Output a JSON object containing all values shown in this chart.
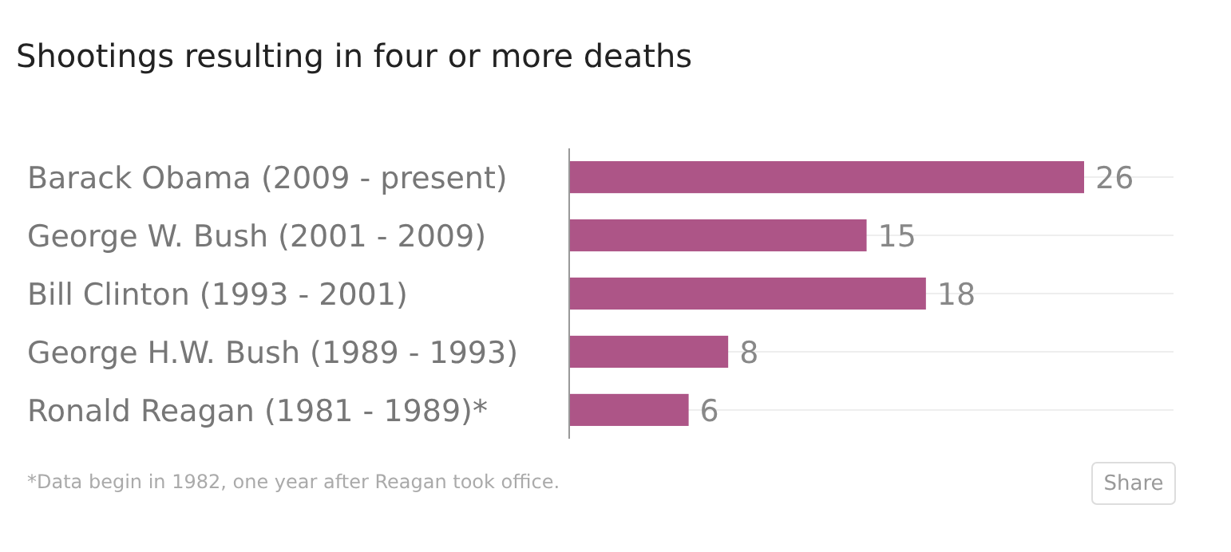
{
  "chart_data": {
    "type": "bar",
    "orientation": "horizontal",
    "title": "Shootings resulting in four or more deaths",
    "categories": [
      "Barack Obama (2009 - present)",
      "George W. Bush (2001 - 2009)",
      "Bill Clinton (1993 - 2001)",
      "George H.W. Bush (1989 - 1993)",
      "Ronald Reagan (1981 - 1989)*"
    ],
    "values": [
      26,
      15,
      18,
      8,
      6
    ],
    "color": "#ad5587",
    "data_labels": true,
    "tick_labels": "y",
    "grid": "y",
    "annotations": [
      "*Data begin in 1982, one year after Reagan took office.",
      "Share"
    ]
  }
}
